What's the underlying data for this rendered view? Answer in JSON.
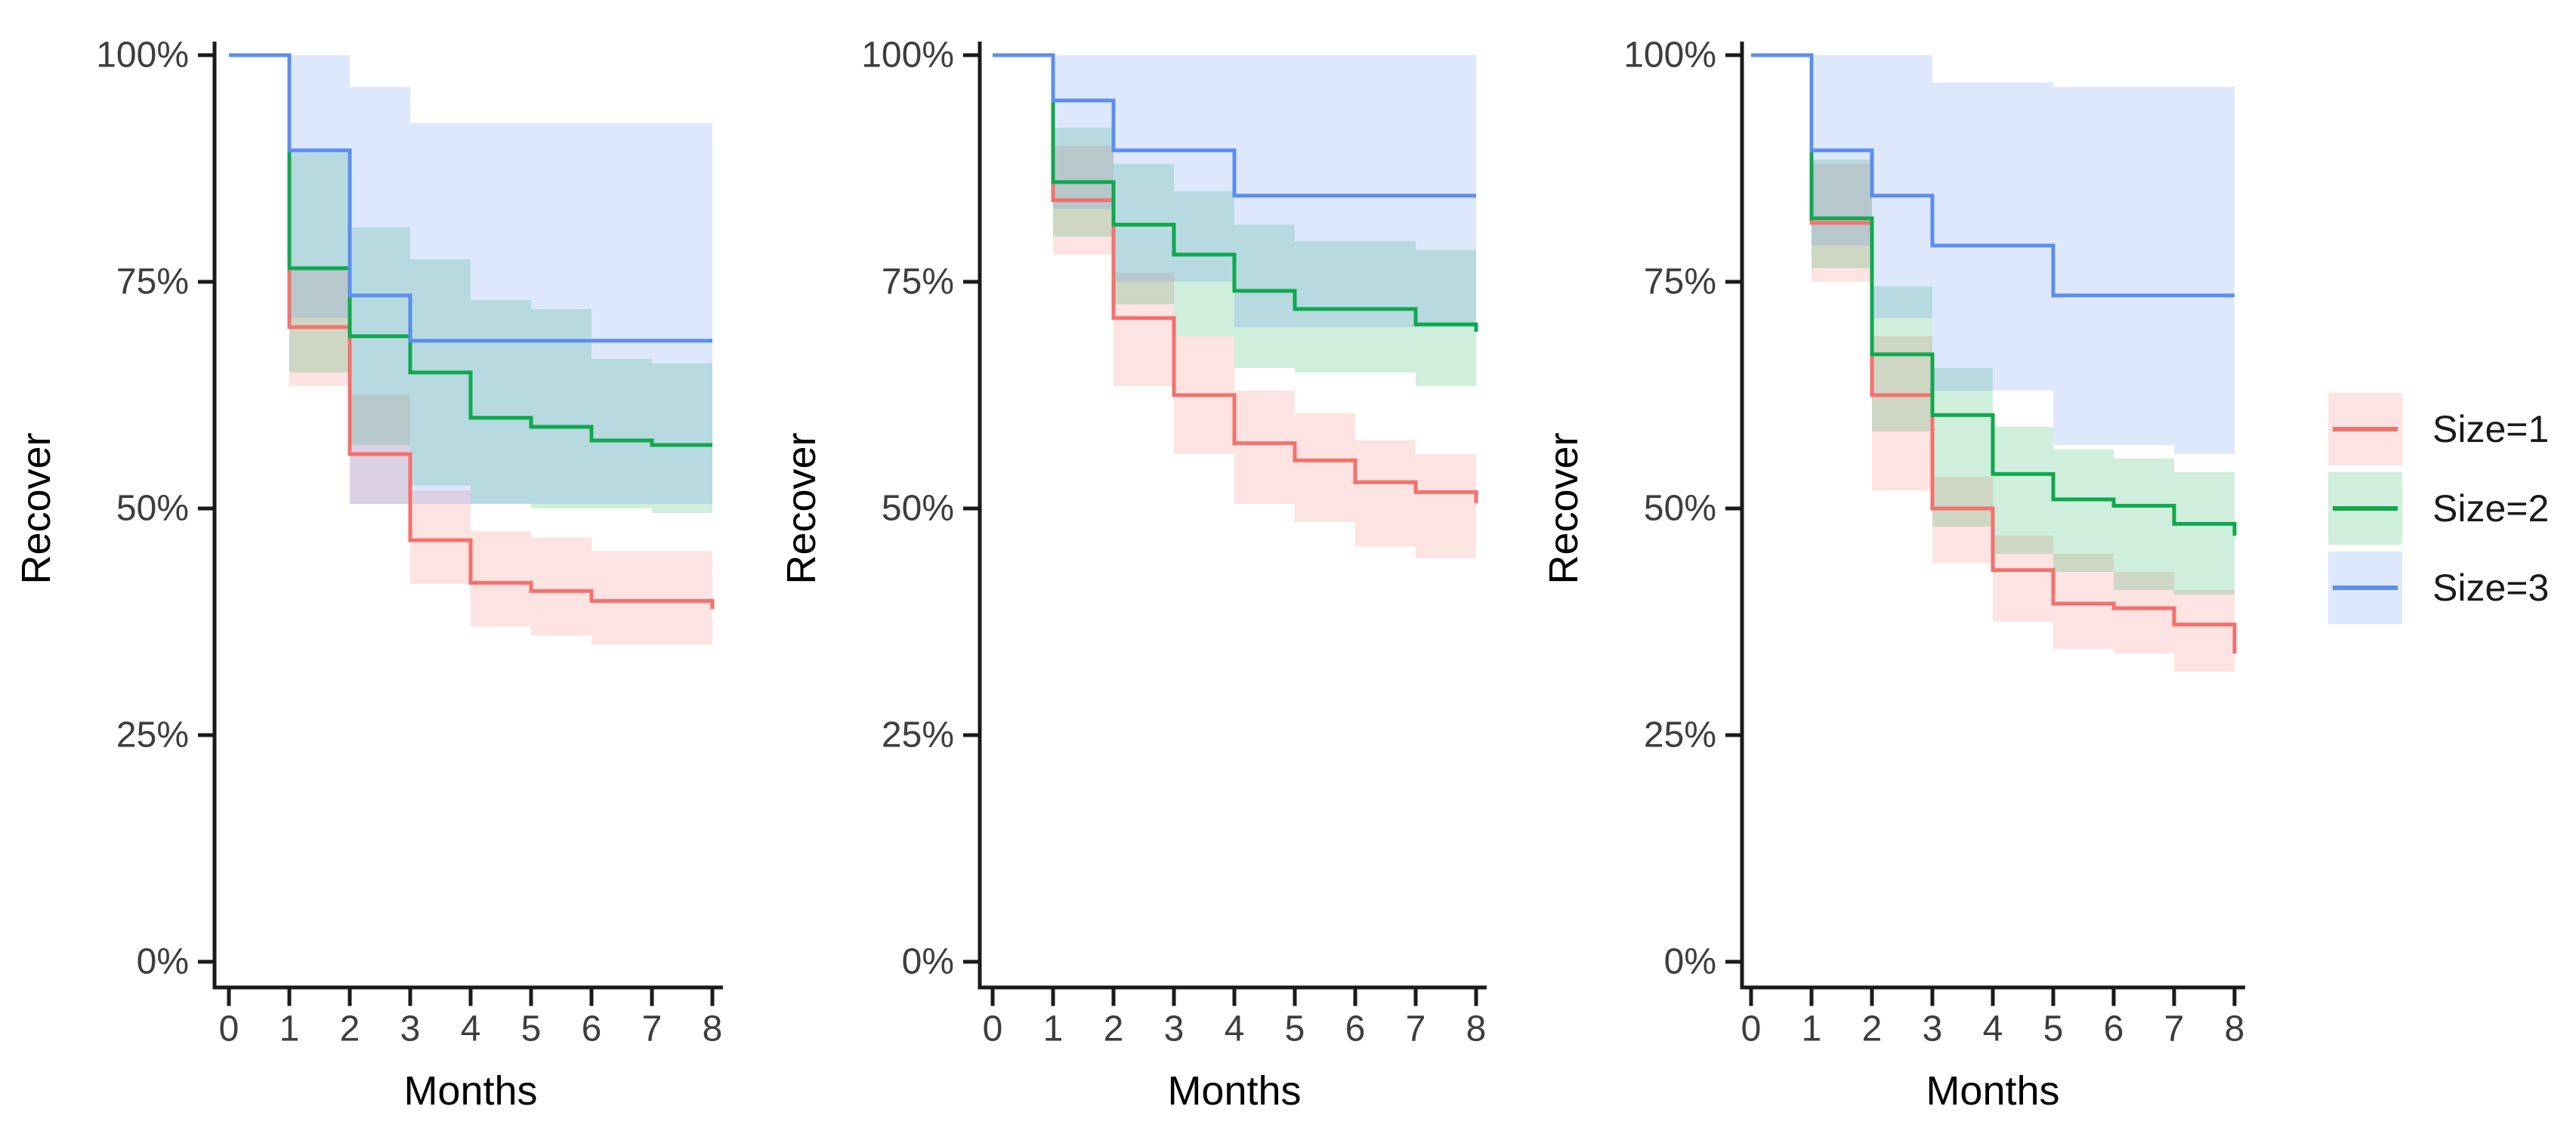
{
  "y_axis": {
    "label": "Recover",
    "tick_labels": [
      "100%",
      "75%",
      "50%",
      "25%",
      "0%"
    ],
    "tick_values": [
      100,
      75,
      50,
      25,
      0
    ]
  },
  "x_axis": {
    "label": "Months",
    "tick_labels": [
      "0",
      "1",
      "2",
      "3",
      "4",
      "5",
      "6",
      "7",
      "8"
    ],
    "tick_values": [
      0,
      1,
      2,
      3,
      4,
      5,
      6,
      7,
      8
    ]
  },
  "legend": {
    "position": "right",
    "items": [
      {
        "label": "Size=1",
        "color": "#F4716C"
      },
      {
        "label": "Size=2",
        "color": "#10A84E"
      },
      {
        "label": "Size=3",
        "color": "#5C8EF0"
      }
    ]
  },
  "chart_data": {
    "type": "line",
    "style": "kaplan-meier-step-with-confidence-bands",
    "x_values": [
      0,
      1,
      2,
      3,
      4,
      5,
      6,
      7,
      8
    ],
    "xlabel": "Months",
    "ylabel": "Recover",
    "ylim": [
      0,
      100
    ],
    "xlim": [
      0,
      8
    ],
    "grid": false,
    "legend_position": "right",
    "panels": [
      {
        "id": "panel-1",
        "series": [
          {
            "name": "Size=1",
            "color": "#F4716C",
            "values": [
              100,
              70,
              56,
              46.5,
              41.8,
              40.9,
              39.8,
              39.8,
              38.9
            ],
            "lower": [
              100,
              63.5,
              50.5,
              41.7,
              37,
              36,
              35,
              35,
              34
            ],
            "upper": [
              100,
              76.5,
              62.5,
              52,
              47.5,
              46.8,
              45.3,
              45.3,
              44.5
            ]
          },
          {
            "name": "Size=2",
            "color": "#10A84E",
            "values": [
              100,
              76.5,
              69,
              65,
              60,
              59,
              57.5,
              57,
              57
            ],
            "lower": [
              100,
              65,
              57,
              52.5,
              50.5,
              50,
              50,
              49.5,
              49.5
            ],
            "upper": [
              100,
              89.5,
              81,
              77.5,
              73,
              72,
              66.5,
              66,
              66
            ]
          },
          {
            "name": "Size=3",
            "color": "#5C8EF0",
            "values": [
              100,
              89.5,
              73.5,
              68.5,
              68.5,
              68.5,
              68.5,
              68.5,
              68.5
            ],
            "lower": [
              100,
              71,
              50.5,
              50.5,
              50.5,
              50.5,
              50.5,
              50.5,
              50.5
            ],
            "upper": [
              100,
              100,
              96.5,
              92.5,
              92.5,
              92.5,
              92.5,
              92.5,
              92.5
            ]
          }
        ]
      },
      {
        "id": "panel-2",
        "series": [
          {
            "name": "Size=1",
            "color": "#F4716C",
            "values": [
              100,
              84,
              71,
              62.5,
              57.2,
              55.3,
              52.9,
              51.8,
              50.6
            ],
            "lower": [
              100,
              78,
              63.5,
              56,
              50.5,
              48.5,
              45.8,
              44.5,
              43.5
            ],
            "upper": [
              100,
              90,
              76,
              69,
              63,
              60.5,
              57.5,
              56,
              55.5
            ]
          },
          {
            "name": "Size=2",
            "color": "#10A84E",
            "values": [
              100,
              86,
              81.3,
              78,
              74,
              72,
              72,
              70.3,
              69.5
            ],
            "lower": [
              100,
              80,
              72.5,
              69,
              65.5,
              65,
              65,
              63.5,
              63.5
            ],
            "upper": [
              100,
              92,
              88,
              85,
              81.3,
              79.5,
              79.5,
              78.5,
              78.5
            ]
          },
          {
            "name": "Size=3",
            "color": "#5C8EF0",
            "values": [
              100,
              95,
              89.5,
              89.5,
              84.5,
              84.5,
              84.5,
              84.5,
              84.5
            ],
            "lower": [
              100,
              83,
              75,
              75,
              70,
              70,
              70,
              70,
              70
            ],
            "upper": [
              100,
              100,
              100,
              100,
              100,
              100,
              100,
              100,
              100
            ]
          }
        ]
      },
      {
        "id": "panel-3",
        "series": [
          {
            "name": "Size=1",
            "color": "#F4716C",
            "values": [
              100,
              81.5,
              62.5,
              50,
              43.2,
              39.5,
              39,
              37.2,
              34
            ],
            "lower": [
              100,
              75,
              52,
              44,
              37.5,
              34.5,
              34,
              32,
              31.5
            ],
            "upper": [
              100,
              88,
              69,
              53.5,
              47,
              45,
              43,
              41,
              39
            ]
          },
          {
            "name": "Size=2",
            "color": "#10A84E",
            "values": [
              100,
              82,
              67,
              60.3,
              53.8,
              51,
              50.3,
              48.3,
              47
            ],
            "lower": [
              100,
              76.5,
              58.5,
              48,
              45,
              43,
              41,
              40.5,
              40.5
            ],
            "upper": [
              100,
              88.5,
              74.5,
              65.5,
              59,
              56.5,
              55.5,
              54,
              53
            ]
          },
          {
            "name": "Size=3",
            "color": "#5C8EF0",
            "values": [
              100,
              89.5,
              84.5,
              79,
              79,
              73.5,
              73.5,
              73.5,
              73.5
            ],
            "lower": [
              100,
              79,
              71,
              63,
              63,
              57,
              57,
              56,
              56
            ],
            "upper": [
              100,
              100,
              100,
              97,
              97,
              96.5,
              96.5,
              96.5,
              96.5
            ]
          }
        ]
      }
    ]
  }
}
